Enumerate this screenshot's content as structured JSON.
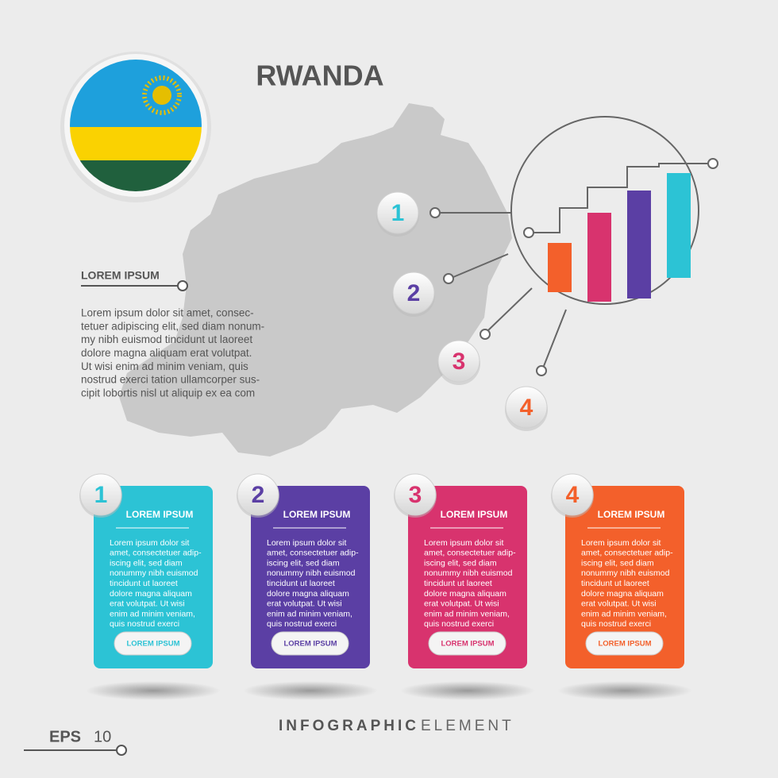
{
  "header": {
    "title": "RWANDA"
  },
  "side_note": {
    "heading": "LOREM IPSUM",
    "lines": [
      "Lorem ipsum dolor sit amet, consec-",
      "tetuer adipiscing elit, sed diam nonum-",
      "my nibh euismod tincidunt ut laoreet",
      "dolore magna aliquam erat volutpat.",
      "Ut wisi enim ad minim veniam, quis",
      "nostrud exerci tation ullamcorper sus-",
      "cipit lobortis nisl ut aliquip ex ea com"
    ]
  },
  "map_badges": [
    "1",
    "2",
    "3",
    "4"
  ],
  "cards": [
    {
      "number": "1",
      "title": "LOREM IPSUM",
      "color": "#2cc3d5",
      "button": "LOREM IPSUM",
      "lines": [
        "Lorem ipsum dolor sit",
        "amet, consectetuer adip-",
        "iscing elit, sed diam",
        "nonummy nibh euismod",
        "tincidunt ut laoreet",
        "dolore magna aliquam",
        "erat volutpat. Ut wisi",
        "enim ad minim veniam,",
        "quis nostrud exerci"
      ]
    },
    {
      "number": "2",
      "title": "LOREM IPSUM",
      "color": "#5b3fa4",
      "button": "LOREM IPSUM",
      "lines": [
        "Lorem ipsum dolor sit",
        "amet, consectetuer adip-",
        "iscing elit, sed diam",
        "nonummy nibh euismod",
        "tincidunt ut laoreet",
        "dolore magna aliquam",
        "erat volutpat. Ut wisi",
        "enim ad minim veniam,",
        "quis nostrud exerci"
      ]
    },
    {
      "number": "3",
      "title": "LOREM IPSUM",
      "color": "#d8336e",
      "button": "LOREM IPSUM",
      "lines": [
        "Lorem ipsum dolor sit",
        "amet, consectetuer adip-",
        "iscing elit, sed diam",
        "nonummy nibh euismod",
        "tincidunt ut laoreet",
        "dolore magna aliquam",
        "erat volutpat. Ut wisi",
        "enim ad minim veniam,",
        "quis nostrud exerci"
      ]
    },
    {
      "number": "4",
      "title": "LOREM IPSUM",
      "color": "#f3602b",
      "button": "LOREM IPSUM",
      "lines": [
        "Lorem ipsum dolor sit",
        "amet, consectetuer adip-",
        "iscing elit, sed diam",
        "nonummy nibh euismod",
        "tincidunt ut laoreet",
        "dolore magna aliquam",
        "erat volutpat. Ut wisi",
        "enim ad minim veniam,",
        "quis nostrud exerci"
      ]
    }
  ],
  "footer": {
    "format": "EPS",
    "version": "10",
    "title_bold": "INFOGRAPHIC",
    "title_light": "ELEMENT"
  }
}
